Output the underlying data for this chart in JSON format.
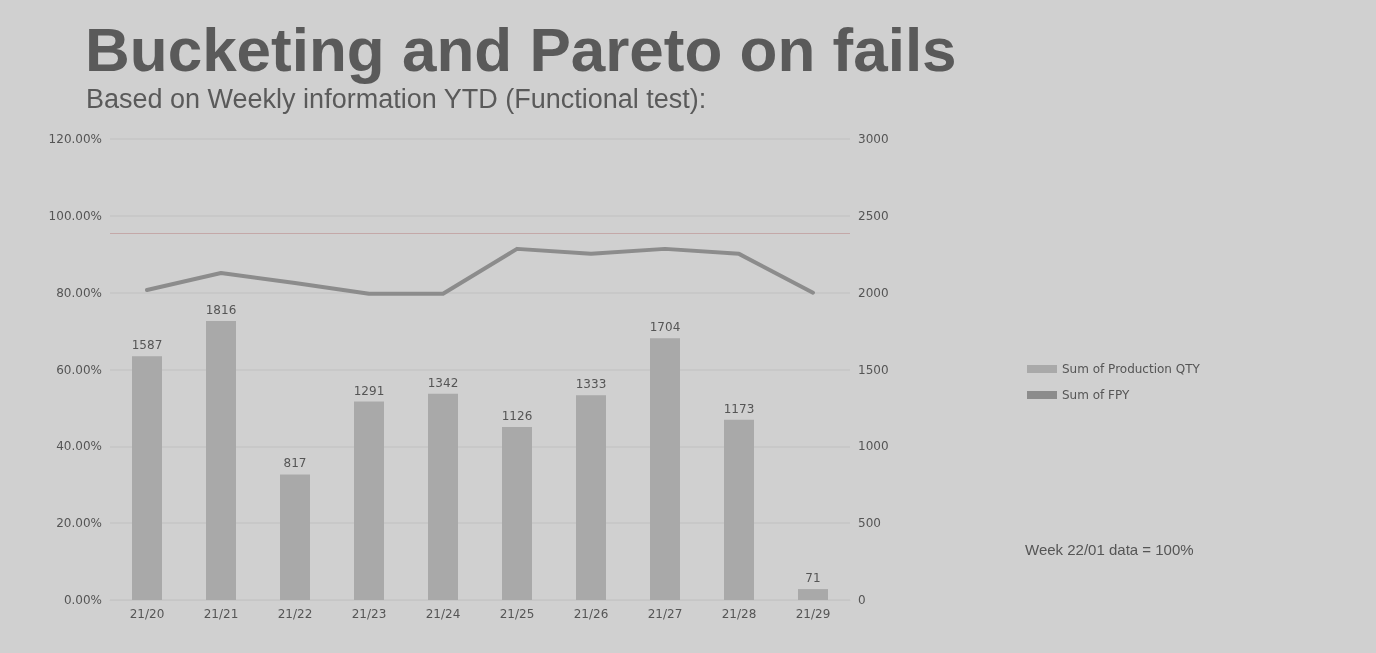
{
  "chart_data": {
    "type": "bar",
    "title": "Bucketing and Pareto on fails",
    "subtitle": "Based on Weekly information YTD  (Functional  test):",
    "categories": [
      "21/20",
      "21/21",
      "21/22",
      "21/23",
      "21/24",
      "21/25",
      "21/26",
      "21/27",
      "21/28",
      "21/29"
    ],
    "series": [
      {
        "name": "Sum of Production QTY",
        "axis": "y2",
        "color": "#a9a9a9",
        "values": [
          1587,
          1816,
          817,
          1291,
          1342,
          1126,
          1333,
          1704,
          1173,
          71
        ],
        "value_labels": [
          "1587",
          "1816",
          "817",
          "1291",
          "1342",
          "1126",
          "1333",
          "1704",
          "1173",
          "71"
        ]
      },
      {
        "name": "Sum of FPY",
        "type": "line",
        "axis": "y",
        "color": "#8c8c8c",
        "values": [
          80.7,
          85.1,
          82.5,
          79.7,
          79.7,
          91.4,
          90.1,
          91.4,
          90.1,
          80
        ],
        "marker": "none",
        "line_style": "solid"
      }
    ],
    "ylim": [
      0,
      120
    ],
    "yticks": [
      {
        "value": 0,
        "label": "0.00%"
      },
      {
        "value": 20,
        "label": "20.00%"
      },
      {
        "value": 40,
        "label": "40.00%"
      },
      {
        "value": 60,
        "label": "60.00%"
      },
      {
        "value": 80,
        "label": "80.00%"
      },
      {
        "value": 100,
        "label": "100.00%"
      },
      {
        "value": 120,
        "label": "120.00%"
      }
    ],
    "y2lim": [
      0,
      3000
    ],
    "y2ticks": [
      0,
      500,
      1000,
      1500,
      2000,
      2500,
      3000
    ],
    "ref_lines": [
      {
        "axis": "y",
        "value": 95.5,
        "color": "#c4a8a8"
      }
    ],
    "annotations": [
      "Week 22/01 data = 100%"
    ],
    "grid": "y",
    "legend": "right"
  }
}
